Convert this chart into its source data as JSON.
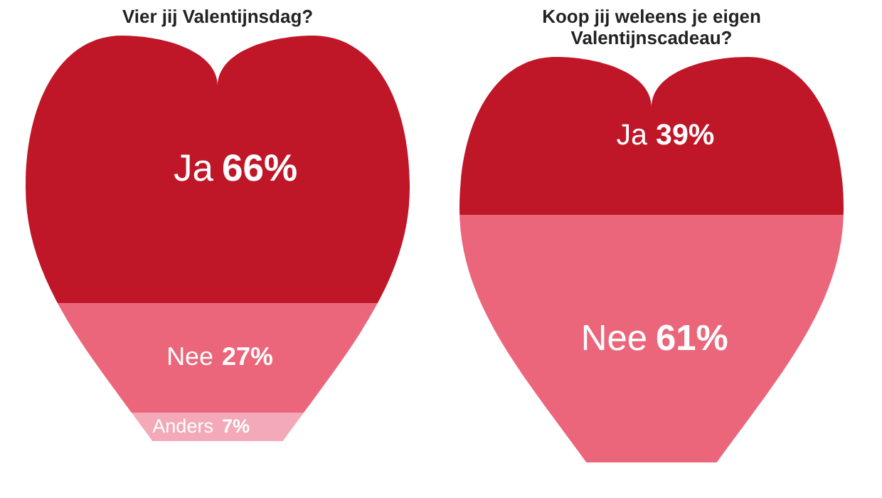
{
  "chart_data": [
    {
      "type": "bar",
      "title": "Vier jij Valentijnsdag?",
      "categories": [
        null
      ],
      "stacked": true,
      "tick_labels": false,
      "legend": false,
      "series": [
        {
          "name": "Anders",
          "color": "#f3a9b7",
          "values": [
            7
          ],
          "value_labels": [
            "7%"
          ]
        },
        {
          "name": "Nee",
          "color": "#ec667b",
          "values": [
            27
          ],
          "value_labels": [
            "27%"
          ]
        },
        {
          "name": "Ja",
          "color": "#bf1628",
          "values": [
            66
          ],
          "value_labels": [
            "66%"
          ]
        }
      ]
    },
    {
      "type": "bar",
      "title": "Koop jij weleens je eigen Valentijnscadeau?",
      "categories": [
        null
      ],
      "stacked": true,
      "tick_labels": false,
      "legend": false,
      "series": [
        {
          "name": "Nee",
          "color": "#ec667b",
          "values": [
            61
          ],
          "value_labels": [
            "61%"
          ]
        },
        {
          "name": "Ja",
          "color": "#bf1628",
          "values": [
            39
          ],
          "value_labels": [
            "39%"
          ]
        }
      ]
    }
  ]
}
